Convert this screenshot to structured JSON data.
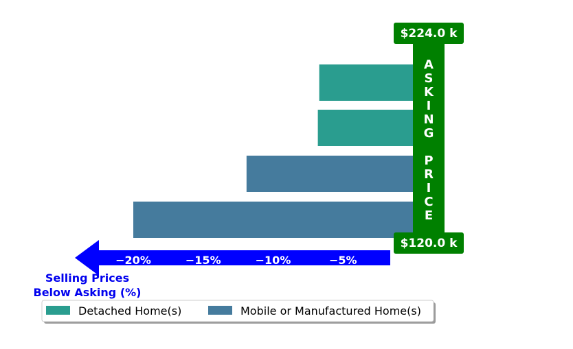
{
  "chart_data": {
    "type": "bar",
    "orientation": "horizontal",
    "series": [
      {
        "name": "Detached Home(s)",
        "values": [
          -6.7,
          -6.8
        ]
      },
      {
        "name": "Mobile or Manufactured Home(s)",
        "values": [
          -11.9,
          -20.0
        ]
      }
    ],
    "bars": [
      {
        "series": "Detached Home(s)",
        "value": -6.7
      },
      {
        "series": "Detached Home(s)",
        "value": -6.8
      },
      {
        "series": "Mobile or Manufactured Home(s)",
        "value": -11.9
      },
      {
        "series": "Mobile or Manufactured Home(s)",
        "value": -20.0
      }
    ],
    "xlim": [
      -23,
      0
    ],
    "xticks": [
      -20,
      -15,
      -10,
      -5
    ],
    "xtick_labels": [
      "−20%",
      "−15%",
      "−10%",
      "−5%"
    ],
    "xlabel": "Selling Prices\nBelow Asking (%)",
    "legend": {
      "placement": "bottom",
      "entries": [
        "Detached Home(s)",
        "Mobile or Manufactured Home(s)"
      ]
    },
    "grid": false
  },
  "asking": {
    "top_label": "$224.0 k",
    "bottom_label": "$120.0 k",
    "vertical_text": "ASKING PRICE"
  },
  "colors": {
    "detached": "#2a9d8f",
    "mobile": "#457b9d",
    "asking": "#008000",
    "arrow": "#0000ff",
    "xlabel": "#0000ee"
  }
}
